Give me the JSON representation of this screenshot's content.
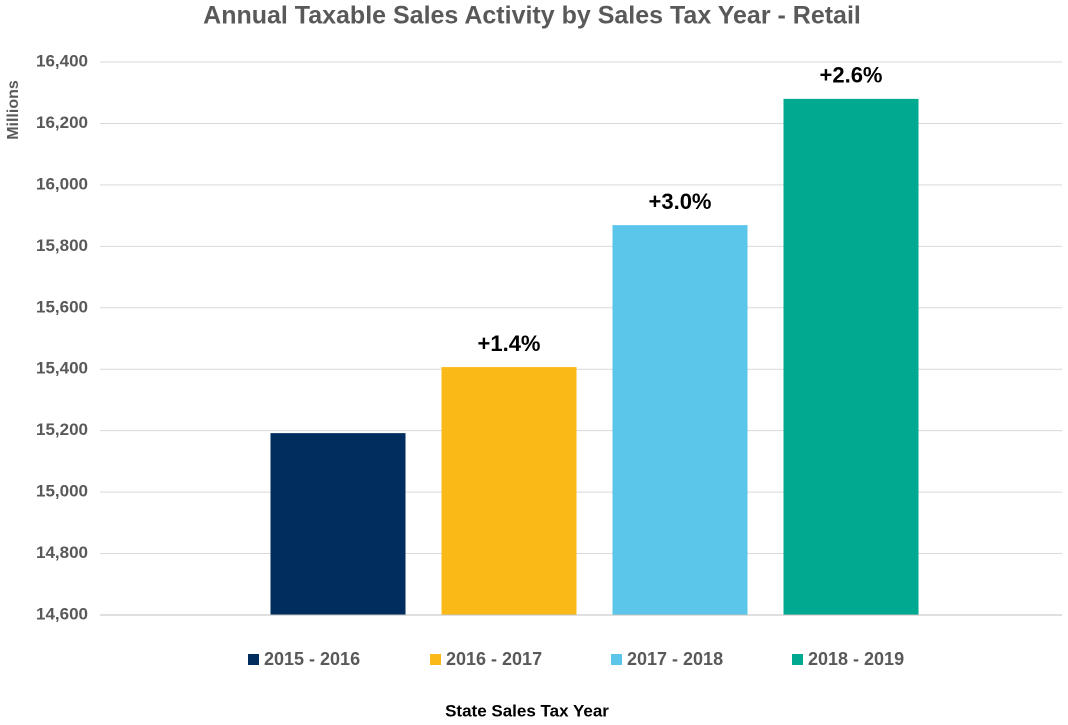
{
  "chart_data": {
    "type": "bar",
    "title": "Annual Taxable Sales Activity by Sales Tax Year - Retail",
    "y_label": "Millions",
    "x_label": "State Sales Tax Year",
    "series": [
      {
        "name": "2015 - 2016",
        "color": "#002d5e",
        "values": [
          15192
        ]
      },
      {
        "name": "2016 - 2017",
        "color": "#fbb917",
        "values": [
          15407
        ],
        "annotation": "+1.4%"
      },
      {
        "name": "2017 - 2018",
        "color": "#5bc5ea",
        "values": [
          15869
        ],
        "annotation": "+3.0%"
      },
      {
        "name": "2018 - 2019",
        "color": "#00a98f",
        "values": [
          16280
        ],
        "annotation": "+2.6%"
      }
    ],
    "ylim": [
      14600,
      16400
    ],
    "yticks": [
      {
        "value": 14600,
        "label": "14,600"
      },
      {
        "value": 14800,
        "label": "14,800"
      },
      {
        "value": 15000,
        "label": "15,000"
      },
      {
        "value": 15200,
        "label": "15,200"
      },
      {
        "value": 15400,
        "label": "15,400"
      },
      {
        "value": 15600,
        "label": "15,600"
      },
      {
        "value": 15800,
        "label": "15,800"
      },
      {
        "value": 16000,
        "label": "16,000"
      },
      {
        "value": 16200,
        "label": "16,200"
      },
      {
        "value": 16400,
        "label": "16,400"
      }
    ],
    "grid": true
  }
}
